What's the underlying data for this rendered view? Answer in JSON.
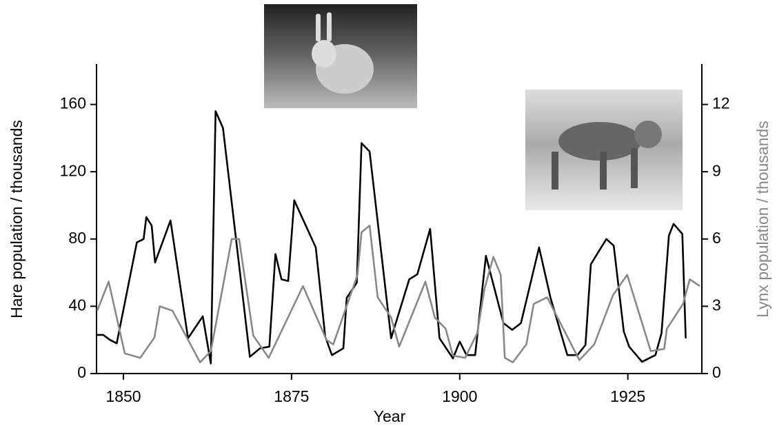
{
  "chart_data": {
    "type": "line",
    "x_label": "Year",
    "y_label": "Hare population / thousands",
    "y2_label": "Lynx population / thousands",
    "xlim": [
      1846,
      1936
    ],
    "xticks": [
      1850,
      1875,
      1900,
      1925
    ],
    "ylim": [
      0,
      184
    ],
    "yticks": [
      0,
      40,
      80,
      120,
      160
    ],
    "y2lim": [
      0,
      13.8
    ],
    "y2ticks": [
      0,
      3,
      6,
      9,
      12
    ],
    "grid": false,
    "series": [
      {
        "name": "Hare",
        "color": "#000000",
        "axis": "y",
        "x": [
          1846,
          1847,
          1848,
          1849,
          1852,
          1853,
          1853.4,
          1854.2,
          1854.7,
          1857,
          1859.6,
          1861.8,
          1863,
          1863.7,
          1864.8,
          1868.8,
          1870.3,
          1871.7,
          1872.6,
          1873.5,
          1874.5,
          1875.4,
          1878.6,
          1880,
          1881,
          1882.7,
          1883.2,
          1884.7,
          1885.4,
          1886.6,
          1889.8,
          1892.5,
          1893.7,
          1895.6,
          1897,
          1899,
          1900,
          1901,
          1902.3,
          1903.9,
          1906.5,
          1907.8,
          1909.1,
          1911.8,
          1913.5,
          1916,
          1917.5,
          1918.7,
          1919.5,
          1921.8,
          1922.9,
          1924.4,
          1925.2,
          1927.1,
          1929.1,
          1930,
          1931.1,
          1931.8,
          1933.1,
          1933.6
        ],
        "values": [
          23,
          23,
          20,
          18,
          78,
          80,
          93,
          88,
          66,
          91,
          21,
          34,
          6,
          156,
          146,
          10,
          15,
          16,
          71,
          56,
          55,
          103,
          75,
          22,
          11,
          15,
          45,
          54,
          137,
          132,
          21,
          56,
          59,
          86,
          21,
          9,
          19,
          11,
          11,
          70,
          30,
          26,
          30,
          75,
          45,
          11,
          11,
          17,
          65,
          80,
          76,
          25,
          16,
          7,
          11,
          24,
          82,
          89,
          83,
          21
        ]
      },
      {
        "name": "Lynx",
        "color": "#888888",
        "axis": "y2",
        "x": [
          1846.1,
          1847.8,
          1850.2,
          1852.5,
          1854.6,
          1855.4,
          1857.3,
          1861.4,
          1863,
          1866.1,
          1867.2,
          1869.3,
          1871.6,
          1876.7,
          1880.2,
          1881.2,
          1884.8,
          1885.4,
          1886.6,
          1887.8,
          1889.8,
          1891,
          1894.9,
          1896.3,
          1897.9,
          1899,
          1900.8,
          1902.6,
          1903.7,
          1905,
          1906.1,
          1906.7,
          1907.9,
          1909.9,
          1911,
          1913,
          1917.8,
          1920,
          1922.8,
          1924.9,
          1928.4,
          1930.4,
          1930.8,
          1933.2,
          1934.2,
          1935.7
        ],
        "values": [
          2.8,
          4.1,
          0.9,
          0.7,
          1.6,
          3.0,
          2.8,
          0.5,
          1.0,
          6.0,
          6.0,
          1.7,
          0.7,
          3.9,
          1.5,
          1.3,
          4.4,
          6.3,
          6.6,
          3.4,
          2.5,
          1.2,
          4.1,
          2.5,
          2.0,
          0.8,
          0.7,
          1.8,
          3.8,
          5.2,
          4.4,
          0.7,
          0.5,
          1.3,
          3.1,
          3.4,
          0.6,
          1.3,
          3.5,
          4.4,
          1.0,
          1.1,
          2.0,
          3.1,
          4.2,
          3.9
        ]
      }
    ]
  }
}
